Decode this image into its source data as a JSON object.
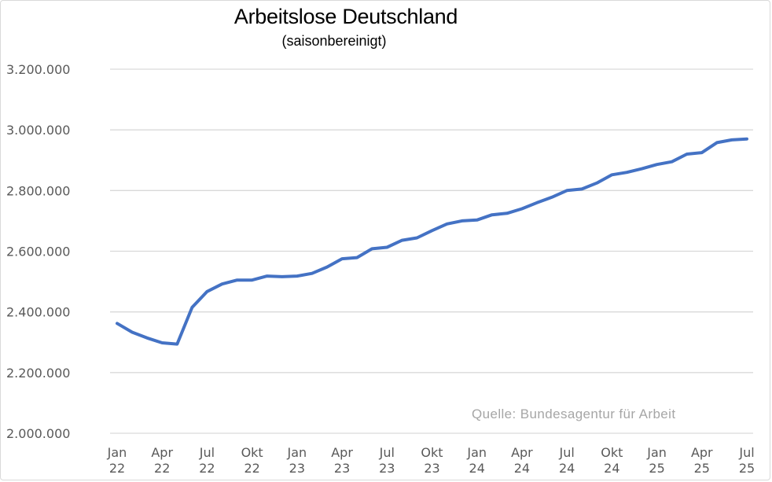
{
  "chart_data": {
    "type": "line",
    "title": "Arbeitslose Deutschland",
    "subtitle": "(saisonbereinigt)",
    "source": "Quelle: Bundesagentur für Arbeit",
    "xlabel": "",
    "ylabel": "",
    "ylim": [
      2000000,
      3200000
    ],
    "y_ticks": [
      {
        "value": 3200000,
        "label": "3.200.000"
      },
      {
        "value": 3000000,
        "label": "3.000.000"
      },
      {
        "value": 2800000,
        "label": "2.800.000"
      },
      {
        "value": 2600000,
        "label": "2.600.000"
      },
      {
        "value": 2400000,
        "label": "2.400.000"
      },
      {
        "value": 2200000,
        "label": "2.200.000"
      },
      {
        "value": 2000000,
        "label": "2.000.000"
      }
    ],
    "x_ticks": [
      {
        "month": "Jan",
        "year": "22"
      },
      {
        "month": "Apr",
        "year": "22"
      },
      {
        "month": "Jul",
        "year": "22"
      },
      {
        "month": "Okt",
        "year": "22"
      },
      {
        "month": "Jan",
        "year": "23"
      },
      {
        "month": "Apr",
        "year": "23"
      },
      {
        "month": "Jul",
        "year": "23"
      },
      {
        "month": "Okt",
        "year": "23"
      },
      {
        "month": "Jan",
        "year": "24"
      },
      {
        "month": "Apr",
        "year": "24"
      },
      {
        "month": "Jul",
        "year": "24"
      },
      {
        "month": "Okt",
        "year": "24"
      },
      {
        "month": "Jan",
        "year": "25"
      },
      {
        "month": "Apr",
        "year": "25"
      },
      {
        "month": "Jul",
        "year": "25"
      }
    ],
    "grid": true,
    "line_color": "#4472c4",
    "grid_color": "#d9d9d9",
    "series": [
      {
        "x": [
          "2022-01",
          "2022-02",
          "2022-03",
          "2022-04",
          "2022-05",
          "2022-06",
          "2022-07",
          "2022-08",
          "2022-09",
          "2022-10",
          "2022-11",
          "2022-12",
          "2023-01",
          "2023-02",
          "2023-03",
          "2023-04",
          "2023-05",
          "2023-06",
          "2023-07",
          "2023-08",
          "2023-09",
          "2023-10",
          "2023-11",
          "2023-12",
          "2024-01",
          "2024-02",
          "2024-03",
          "2024-04",
          "2024-05",
          "2024-06",
          "2024-07",
          "2024-08",
          "2024-09",
          "2024-10",
          "2024-11",
          "2024-12",
          "2025-01",
          "2025-02",
          "2025-03",
          "2025-04",
          "2025-05",
          "2025-06",
          "2025-07"
        ],
        "values": [
          2362000,
          2333000,
          2314000,
          2298000,
          2294000,
          2415000,
          2467000,
          2492000,
          2505000,
          2505000,
          2518000,
          2516000,
          2518000,
          2527000,
          2548000,
          2575000,
          2579000,
          2608000,
          2613000,
          2636000,
          2644000,
          2668000,
          2690000,
          2700000,
          2703000,
          2720000,
          2725000,
          2740000,
          2760000,
          2778000,
          2800000,
          2805000,
          2825000,
          2852000,
          2860000,
          2872000,
          2886000,
          2895000,
          2920000,
          2925000,
          2958000,
          2967000,
          2970000
        ]
      }
    ]
  }
}
